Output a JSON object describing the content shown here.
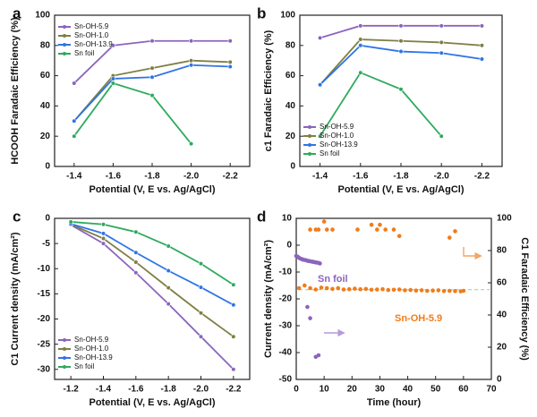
{
  "figure": {
    "panels": [
      "a",
      "b",
      "c",
      "d"
    ]
  },
  "chart_data": [
    {
      "panel": "a",
      "type": "line",
      "xlabel": "Potential (V, E vs. Ag/AgCl)",
      "ylabel": "HCOOH Faradaic Efficiency (%)",
      "x_ticks": [
        "-1.4",
        "-1.6",
        "-1.8",
        "-2.0",
        "-2.2"
      ],
      "y_ticks": [
        "0",
        "20",
        "40",
        "60",
        "80",
        "100"
      ],
      "xlim": [
        -1.3,
        -2.3
      ],
      "ylim": [
        0,
        100
      ],
      "legend_position": "top-left",
      "series": [
        {
          "name": "Sn-OH-5.9",
          "color": "#8b64bd",
          "x": [
            -1.4,
            -1.6,
            -1.8,
            -2.0,
            -2.2
          ],
          "y": [
            55,
            80,
            83,
            83,
            83
          ]
        },
        {
          "name": "Sn-OH-1.0",
          "color": "#7f7f45",
          "x": [
            -1.4,
            -1.6,
            -1.8,
            -2.0,
            -2.2
          ],
          "y": [
            30,
            60,
            65,
            70,
            69
          ]
        },
        {
          "name": "Sn-OH-13.9",
          "color": "#2f74e6",
          "x": [
            -1.4,
            -1.6,
            -1.8,
            -2.0,
            -2.2
          ],
          "y": [
            30,
            58,
            59,
            67,
            66
          ]
        },
        {
          "name": "Sn foil",
          "color": "#2eaa5e",
          "x": [
            -1.4,
            -1.6,
            -1.8,
            -2.0
          ],
          "y": [
            20,
            55,
            47,
            15
          ]
        }
      ]
    },
    {
      "panel": "b",
      "type": "line",
      "xlabel": "Potential (V, E vs. Ag/AgCl)",
      "ylabel": "c1 Faradaic Efficiency (%)",
      "x_ticks": [
        "-1.4",
        "-1.6",
        "-1.8",
        "-2.0",
        "-2.2"
      ],
      "y_ticks": [
        "0",
        "20",
        "40",
        "60",
        "80",
        "100"
      ],
      "xlim": [
        -1.3,
        -2.3
      ],
      "ylim": [
        0,
        100
      ],
      "legend_position": "bottom-left",
      "series": [
        {
          "name": "Sn-OH-5.9",
          "color": "#8b64bd",
          "x": [
            -1.4,
            -1.6,
            -1.8,
            -2.0,
            -2.2
          ],
          "y": [
            85,
            93,
            93,
            93,
            93
          ]
        },
        {
          "name": "Sn-OH-1.0",
          "color": "#7f7f45",
          "x": [
            -1.4,
            -1.6,
            -1.8,
            -2.0,
            -2.2
          ],
          "y": [
            54,
            84,
            83,
            82,
            80
          ]
        },
        {
          "name": "Sn-OH-13.9",
          "color": "#2f74e6",
          "x": [
            -1.4,
            -1.6,
            -1.8,
            -2.0,
            -2.2
          ],
          "y": [
            54,
            80,
            76,
            75,
            71
          ]
        },
        {
          "name": "Sn foil",
          "color": "#2eaa5e",
          "x": [
            -1.4,
            -1.6,
            -1.8,
            -2.0
          ],
          "y": [
            20,
            62,
            51,
            20
          ]
        }
      ]
    },
    {
      "panel": "c",
      "type": "line",
      "xlabel": "Potential (V, E vs. Ag/AgCl)",
      "ylabel": "C1 Current density (mA/cm²)",
      "x_ticks": [
        "-1.2",
        "-1.4",
        "-1.6",
        "-1.8",
        "-2.0",
        "-2.2"
      ],
      "y_ticks": [
        "0",
        "-5",
        "-10",
        "-15",
        "-20",
        "-25",
        "-30"
      ],
      "xlim": [
        -1.1,
        -2.3
      ],
      "ylim": [
        -32,
        0
      ],
      "legend_position": "bottom-left",
      "series": [
        {
          "name": "Sn-OH-5.9",
          "color": "#8b64bd",
          "x": [
            -1.2,
            -1.4,
            -1.6,
            -1.8,
            -2.0,
            -2.2
          ],
          "y": [
            -1.3,
            -5,
            -10.8,
            -17,
            -23.5,
            -30
          ]
        },
        {
          "name": "Sn-OH-1.0",
          "color": "#7f7f45",
          "x": [
            -1.2,
            -1.4,
            -1.6,
            -1.8,
            -2.0,
            -2.2
          ],
          "y": [
            -1.2,
            -4,
            -8.7,
            -13.8,
            -18.8,
            -23.5
          ]
        },
        {
          "name": "Sn-OH-13.9",
          "color": "#2f74e6",
          "x": [
            -1.2,
            -1.4,
            -1.6,
            -1.8,
            -2.0,
            -2.2
          ],
          "y": [
            -1.1,
            -3,
            -6.8,
            -10.4,
            -13.7,
            -17.2
          ]
        },
        {
          "name": "Sn foil",
          "color": "#2eaa5e",
          "x": [
            -1.2,
            -1.4,
            -1.6,
            -1.8,
            -2.0,
            -2.2
          ],
          "y": [
            -0.7,
            -1.2,
            -2.7,
            -5.5,
            -9,
            -13.2
          ]
        }
      ]
    },
    {
      "panel": "d",
      "type": "scatter",
      "xlabel": "Time (hour)",
      "ylabel": "Current density (mA/cm²)",
      "y2label": "C1 Faradaic Efficiency (%)",
      "x_ticks": [
        "0",
        "10",
        "20",
        "30",
        "40",
        "50",
        "60",
        "70"
      ],
      "y_ticks": [
        "10",
        "0",
        "-10",
        "-20",
        "-30",
        "-40",
        "-50"
      ],
      "y2_ticks": [
        "0",
        "20",
        "40",
        "60",
        "80",
        "100"
      ],
      "xlim": [
        0,
        70
      ],
      "ylim": [
        -50,
        10
      ],
      "y2lim": [
        0,
        100
      ],
      "annotations": [
        "Sn foil",
        "Sn-OH-5.9"
      ],
      "series": [
        {
          "name": "Sn foil",
          "axis": "left",
          "color": "#8b64bd",
          "x": [
            0,
            0.5,
            1,
            1.5,
            2,
            2.5,
            3,
            3.5,
            4,
            4.5,
            5,
            5.5,
            6,
            6.5,
            7,
            7.5,
            8,
            8.5
          ],
          "y": [
            -4,
            -4.3,
            -4.7,
            -5,
            -5.2,
            -5.4,
            -5.5,
            -5.6,
            -5.8,
            -5.9,
            -6,
            -6.1,
            -6.2,
            -6.3,
            -6.4,
            -6.5,
            -6.6,
            -6.8
          ]
        },
        {
          "name": "Sn foil",
          "axis": "right",
          "color": "#8b64bd",
          "x": [
            4,
            5,
            7,
            8
          ],
          "y": [
            45,
            38,
            14,
            15
          ]
        },
        {
          "name": "Sn-OH-5.9",
          "axis": "left",
          "color": "#f07c1a",
          "x": [
            1,
            3,
            5,
            7,
            9,
            11,
            13,
            15,
            17,
            19,
            21,
            23,
            25,
            27,
            29,
            31,
            33,
            35,
            37,
            39,
            41,
            43,
            45,
            47,
            49,
            51,
            53,
            55,
            57,
            59,
            60
          ],
          "y": [
            -16,
            -15,
            -16,
            -16.5,
            -15.8,
            -16,
            -16.3,
            -16,
            -16.5,
            -16.4,
            -16.2,
            -16.4,
            -16.3,
            -16.6,
            -16.5,
            -16.4,
            -16.7,
            -16.6,
            -16.5,
            -16.8,
            -16.7,
            -16.9,
            -16.8,
            -17,
            -16.9,
            -16.8,
            -17.1,
            -17,
            -17.1,
            -17.2,
            -17
          ]
        },
        {
          "name": "Sn-OH-5.9",
          "axis": "right",
          "color": "#f07c1a",
          "x": [
            5,
            7,
            8,
            10,
            11,
            13,
            22,
            27,
            29,
            30,
            32,
            35,
            37,
            55,
            57
          ],
          "y": [
            93,
            93,
            93,
            98,
            93,
            93,
            93,
            96,
            93,
            96,
            93,
            93,
            89,
            88,
            92
          ]
        }
      ]
    }
  ]
}
